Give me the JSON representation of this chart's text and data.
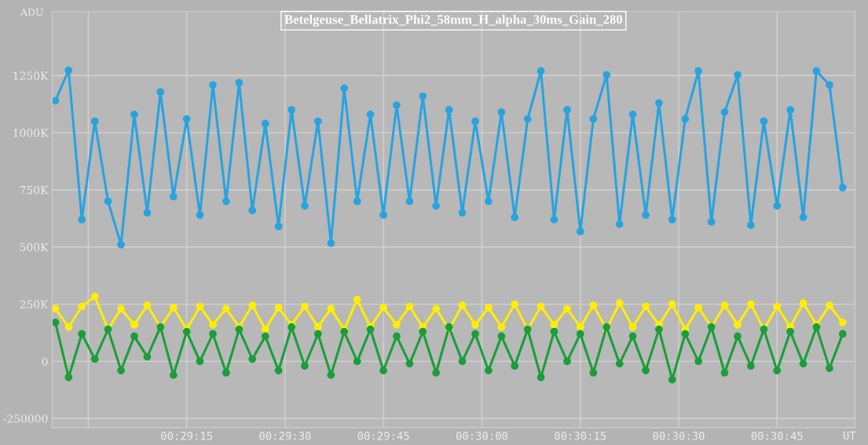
{
  "chart_data": {
    "type": "line",
    "title": "Betelgeuse_Bellatrix_Phi2_58mm_H_alpha_30ms_Gain_280",
    "xlabel": "UT",
    "ylabel": "ADU",
    "x": [
      0.48194,
      0.4825,
      0.48306,
      0.48361,
      0.48417,
      0.48472,
      0.48528,
      0.48583,
      0.48639,
      0.48694,
      0.4875,
      0.48806,
      0.48861,
      0.48917,
      0.48972,
      0.49028,
      0.49083,
      0.49139,
      0.49194,
      0.4925,
      0.49306,
      0.49361,
      0.49417,
      0.49472,
      0.49528,
      0.49583,
      0.49639,
      0.49694,
      0.4975,
      0.49806,
      0.49861,
      0.49917,
      0.49972,
      0.50028,
      0.50083,
      0.50139,
      0.50194,
      0.5025,
      0.50306,
      0.50361,
      0.50417,
      0.50472,
      0.50528,
      0.50583,
      0.50639,
      0.50694,
      0.5075,
      0.50806,
      0.50861,
      0.50917,
      0.50972,
      0.51028,
      0.51083,
      0.51139,
      0.51194,
      0.5125,
      0.51306,
      0.51361,
      0.51417,
      0.51472,
      0.51528
    ],
    "series": [
      {
        "color": "#29a3e0",
        "values": [
          1140000,
          1273000,
          620000,
          1050000,
          700000,
          510000,
          1080000,
          650000,
          1178000,
          720000,
          1060000,
          640000,
          1209000,
          700000,
          1219000,
          660000,
          1040000,
          590000,
          1100000,
          680000,
          1050000,
          517000,
          1195000,
          700000,
          1080000,
          640000,
          1120000,
          700000,
          1160000,
          680000,
          1100000,
          650000,
          1050000,
          700000,
          1090000,
          630000,
          1060000,
          1270000,
          620000,
          1100000,
          568000,
          1060000,
          1253000,
          600000,
          1080000,
          640000,
          1130000,
          620000,
          1060000,
          1270000,
          610000,
          1090000,
          1253000,
          596000,
          1050000,
          680000,
          1100000,
          630000,
          1270000,
          1209000,
          760000
        ]
      },
      {
        "color": "#ffee00",
        "values": [
          230000,
          150000,
          240000,
          284000,
          140000,
          230000,
          160000,
          245000,
          150000,
          235000,
          140000,
          240000,
          160000,
          230000,
          150000,
          245000,
          140000,
          235000,
          160000,
          240000,
          150000,
          230000,
          140000,
          270000,
          150000,
          235000,
          160000,
          240000,
          150000,
          230000,
          140000,
          245000,
          160000,
          235000,
          150000,
          250000,
          140000,
          240000,
          160000,
          230000,
          150000,
          245000,
          140000,
          255000,
          150000,
          240000,
          160000,
          250000,
          140000,
          235000,
          150000,
          245000,
          160000,
          250000,
          140000,
          240000,
          150000,
          255000,
          160000,
          245000,
          170000
        ]
      },
      {
        "color": "#1a9e3a",
        "values": [
          170000,
          -70000,
          120000,
          10000,
          140000,
          -40000,
          110000,
          20000,
          150000,
          -60000,
          130000,
          0,
          120000,
          -50000,
          140000,
          10000,
          110000,
          -40000,
          150000,
          -20000,
          120000,
          -60000,
          130000,
          0,
          140000,
          -40000,
          110000,
          -10000,
          130000,
          -50000,
          150000,
          0,
          120000,
          -40000,
          110000,
          -20000,
          140000,
          -70000,
          130000,
          0,
          120000,
          -50000,
          150000,
          -10000,
          110000,
          -40000,
          140000,
          -80000,
          120000,
          0,
          150000,
          -50000,
          110000,
          -20000,
          140000,
          -40000,
          130000,
          -10000,
          150000,
          -30000,
          120000
        ]
      }
    ],
    "xlim": [
      0.4818,
      0.5158
    ],
    "xticks": [
      {
        "value": 0.483333,
        "label": null
      },
      {
        "value": 0.4875,
        "label": "00:29:15"
      },
      {
        "value": 0.491667,
        "label": "00:29:30"
      },
      {
        "value": 0.495833,
        "label": "00:29:45"
      },
      {
        "value": 0.5,
        "label": "00:30:00"
      },
      {
        "value": 0.504167,
        "label": "00:30:15"
      },
      {
        "value": 0.508333,
        "label": "00:30:30"
      },
      {
        "value": 0.5125,
        "label": "00:30:45"
      }
    ],
    "ylim": [
      -290000,
      1530000
    ],
    "yticks": [
      -250000,
      {
        "value": 0,
        "label": "0"
      },
      {
        "value": 250000,
        "label": "250K"
      },
      {
        "value": 500000,
        "label": "500K"
      },
      {
        "value": 750000,
        "label": "750K"
      },
      {
        "value": 1000000,
        "label": "1000K"
      },
      {
        "value": 1250000,
        "label": "1250K"
      }
    ],
    "grid": true,
    "marker": "circle",
    "line_style": "solid"
  }
}
